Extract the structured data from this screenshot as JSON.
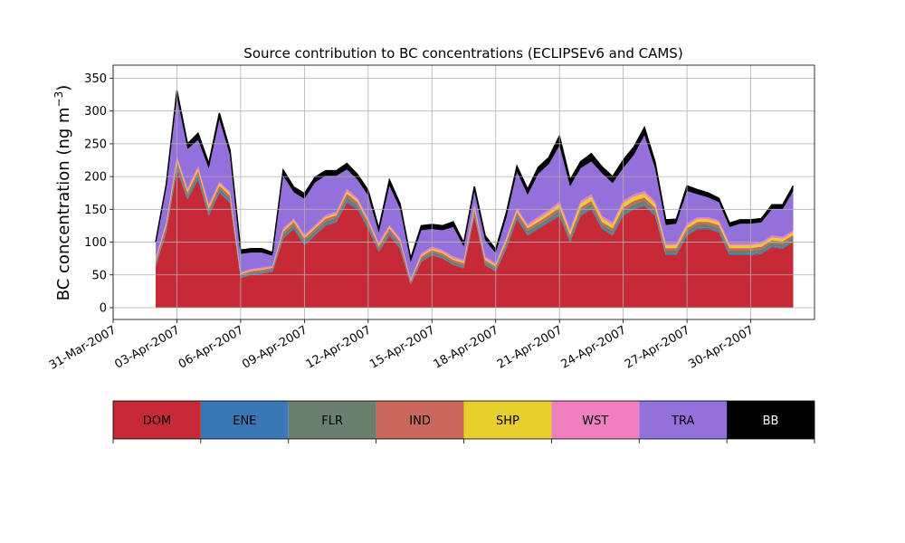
{
  "chart_data": {
    "type": "area",
    "stacked": true,
    "title": "Source contribution to BC concentrations (ECLIPSEv6 and CAMS)",
    "xlabel": "",
    "ylabel": "BC concentration (ng m",
    "ylabel_sup": "−3",
    "ylabel_tail": ")",
    "xlim": [
      "2007-03-31",
      "2007-05-03"
    ],
    "ylim": [
      -18,
      370
    ],
    "yticks": [
      0,
      50,
      100,
      150,
      200,
      250,
      300,
      350
    ],
    "xticks": [
      "31-Mar-2007",
      "03-Apr-2007",
      "06-Apr-2007",
      "09-Apr-2007",
      "12-Apr-2007",
      "15-Apr-2007",
      "18-Apr-2007",
      "21-Apr-2007",
      "24-Apr-2007",
      "27-Apr-2007",
      "30-Apr-2007"
    ],
    "xtick_dates": [
      "2007-03-31",
      "2007-04-03",
      "2007-04-06",
      "2007-04-09",
      "2007-04-12",
      "2007-04-15",
      "2007-04-18",
      "2007-04-21",
      "2007-04-24",
      "2007-04-27",
      "2007-04-30"
    ],
    "grid": true,
    "x": [
      "2007-04-02",
      "2007-04-02 12:00",
      "2007-04-03",
      "2007-04-03 12:00",
      "2007-04-04",
      "2007-04-04 12:00",
      "2007-04-05",
      "2007-04-05 12:00",
      "2007-04-06",
      "2007-04-06 12:00",
      "2007-04-07",
      "2007-04-07 12:00",
      "2007-04-08",
      "2007-04-08 12:00",
      "2007-04-09",
      "2007-04-09 12:00",
      "2007-04-10",
      "2007-04-10 12:00",
      "2007-04-11",
      "2007-04-11 12:00",
      "2007-04-12",
      "2007-04-12 12:00",
      "2007-04-13",
      "2007-04-13 12:00",
      "2007-04-14",
      "2007-04-14 12:00",
      "2007-04-15",
      "2007-04-15 12:00",
      "2007-04-16",
      "2007-04-16 12:00",
      "2007-04-17",
      "2007-04-17 12:00",
      "2007-04-18",
      "2007-04-18 12:00",
      "2007-04-19",
      "2007-04-19 12:00",
      "2007-04-20",
      "2007-04-20 12:00",
      "2007-04-21",
      "2007-04-21 12:00",
      "2007-04-22",
      "2007-04-22 12:00",
      "2007-04-23",
      "2007-04-23 12:00",
      "2007-04-24",
      "2007-04-24 12:00",
      "2007-04-25",
      "2007-04-25 12:00",
      "2007-04-26",
      "2007-04-26 12:00",
      "2007-04-27",
      "2007-04-27 12:00",
      "2007-04-28",
      "2007-04-28 12:00",
      "2007-04-29",
      "2007-04-29 12:00",
      "2007-04-30",
      "2007-04-30 12:00",
      "2007-05-01",
      "2007-05-01 12:00",
      "2007-05-02"
    ],
    "series": [
      {
        "name": "DOM",
        "color": "#c62a36",
        "values": [
          62,
          115,
          210,
          165,
          195,
          140,
          175,
          160,
          45,
          50,
          52,
          55,
          105,
          120,
          95,
          110,
          125,
          130,
          160,
          150,
          120,
          85,
          110,
          90,
          35,
          70,
          80,
          75,
          65,
          60,
          140,
          65,
          55,
          90,
          135,
          110,
          120,
          130,
          140,
          100,
          140,
          150,
          120,
          110,
          140,
          150,
          155,
          140,
          80,
          80,
          110,
          120,
          120,
          115,
          80,
          80,
          80,
          82,
          92,
          90,
          100
        ]
      },
      {
        "name": "ENE",
        "color": "#3a78b5",
        "values": [
          2,
          2,
          3,
          2,
          3,
          2,
          2,
          2,
          1,
          1,
          1,
          1,
          2,
          2,
          2,
          2,
          2,
          2,
          3,
          2,
          2,
          2,
          2,
          2,
          1,
          1,
          1,
          1,
          1,
          1,
          2,
          1,
          1,
          2,
          2,
          2,
          2,
          2,
          2,
          2,
          2,
          2,
          2,
          2,
          2,
          2,
          2,
          2,
          2,
          2,
          2,
          2,
          2,
          2,
          2,
          2,
          2,
          2,
          2,
          2,
          2
        ]
      },
      {
        "name": "FLR",
        "color": "#6b7f6e",
        "values": [
          4,
          5,
          6,
          5,
          6,
          5,
          5,
          5,
          3,
          3,
          3,
          3,
          5,
          5,
          5,
          5,
          5,
          5,
          6,
          5,
          5,
          4,
          5,
          5,
          3,
          4,
          4,
          4,
          4,
          4,
          5,
          4,
          4,
          5,
          5,
          5,
          5,
          5,
          6,
          5,
          6,
          6,
          5,
          5,
          6,
          6,
          6,
          6,
          5,
          5,
          5,
          5,
          5,
          5,
          5,
          5,
          5,
          5,
          5,
          5,
          5
        ]
      },
      {
        "name": "IND",
        "color": "#c9685a",
        "values": [
          3,
          4,
          5,
          4,
          5,
          4,
          4,
          4,
          2,
          2,
          2,
          2,
          4,
          4,
          4,
          4,
          4,
          4,
          5,
          4,
          4,
          3,
          4,
          4,
          2,
          3,
          3,
          3,
          3,
          3,
          4,
          3,
          3,
          4,
          4,
          4,
          4,
          4,
          5,
          4,
          5,
          5,
          4,
          4,
          5,
          5,
          5,
          5,
          4,
          4,
          4,
          4,
          4,
          4,
          4,
          4,
          4,
          4,
          4,
          4,
          4
        ]
      },
      {
        "name": "SHP",
        "color": "#e7cf2e",
        "values": [
          2,
          2,
          3,
          3,
          3,
          3,
          3,
          3,
          1,
          1,
          1,
          1,
          2,
          2,
          2,
          2,
          2,
          2,
          3,
          3,
          2,
          2,
          2,
          2,
          1,
          2,
          2,
          2,
          2,
          2,
          3,
          2,
          2,
          3,
          3,
          3,
          4,
          4,
          5,
          5,
          6,
          6,
          5,
          5,
          6,
          6,
          6,
          5,
          4,
          4,
          4,
          4,
          4,
          4,
          4,
          4,
          4,
          4,
          4,
          4,
          4
        ]
      },
      {
        "name": "WST",
        "color": "#f07fbd",
        "values": [
          3,
          3,
          4,
          3,
          4,
          3,
          3,
          3,
          2,
          2,
          2,
          2,
          3,
          3,
          3,
          3,
          3,
          3,
          4,
          3,
          3,
          3,
          3,
          3,
          2,
          3,
          3,
          3,
          3,
          3,
          3,
          3,
          3,
          3,
          3,
          3,
          4,
          4,
          4,
          4,
          4,
          4,
          4,
          4,
          4,
          4,
          4,
          4,
          3,
          3,
          3,
          3,
          3,
          3,
          3,
          3,
          3,
          3,
          3,
          3,
          3
        ]
      },
      {
        "name": "TRA",
        "color": "#9470da",
        "values": [
          24,
          54,
          90,
          60,
          40,
          55,
          95,
          55,
          28,
          25,
          23,
          15,
          80,
          40,
          55,
          65,
          60,
          55,
          30,
          28,
          35,
          15,
          60,
          45,
          25,
          35,
          27,
          30,
          45,
          20,
          20,
          25,
          15,
          30,
          55,
          45,
          65,
          70,
          85,
          65,
          50,
          50,
          65,
          60,
          50,
          60,
          85,
          50,
          28,
          30,
          50,
          35,
          30,
          28,
          25,
          30,
          30,
          30,
          40,
          42,
          60
        ]
      },
      {
        "name": "BB",
        "color": "#000000",
        "values": [
          0,
          3,
          10,
          8,
          10,
          8,
          10,
          8,
          6,
          6,
          6,
          5,
          9,
          8,
          8,
          8,
          8,
          8,
          9,
          8,
          8,
          7,
          9,
          8,
          6,
          7,
          7,
          7,
          8,
          6,
          8,
          7,
          6,
          8,
          9,
          9,
          10,
          10,
          15,
          10,
          10,
          12,
          10,
          10,
          12,
          12,
          12,
          10,
          8,
          7,
          8,
          7,
          7,
          6,
          6,
          6,
          6,
          6,
          7,
          7,
          8
        ]
      }
    ],
    "legend_position": "bottom"
  }
}
